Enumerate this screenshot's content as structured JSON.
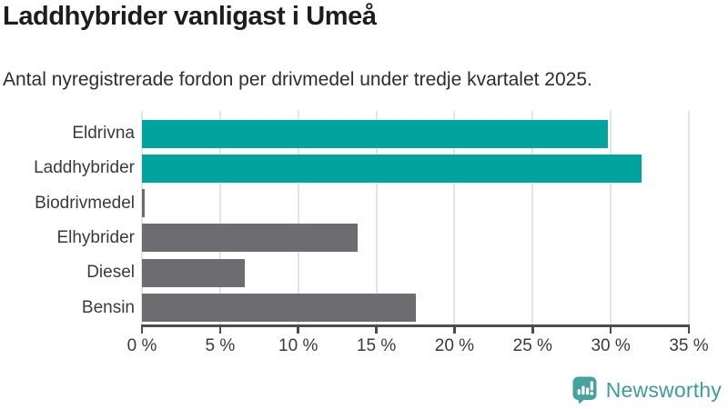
{
  "title": "Laddhybrider vanligast i Umeå",
  "subtitle": "Antal nyregistrerade fordon per drivmedel under tredje kvartalet 2025.",
  "chart_data": {
    "type": "bar",
    "orientation": "horizontal",
    "title": "Laddhybrider vanligast i Umeå",
    "subtitle": "Antal nyregistrerade fordon per drivmedel under tredje kvartalet 2025.",
    "categories": [
      "Eldrivna",
      "Laddhybrider",
      "Biodrivmedel",
      "Elhybrider",
      "Diesel",
      "Bensin"
    ],
    "values": [
      29.8,
      32.0,
      0.2,
      13.8,
      6.6,
      17.5
    ],
    "unit": "%",
    "bar_colors": [
      "#01a49c",
      "#01a49c",
      "#6c6c71",
      "#6c6c71",
      "#6c6c71",
      "#6c6c71"
    ],
    "highlight_color": "#01a49c",
    "base_color": "#6c6c71",
    "xlim": [
      0,
      35
    ],
    "x_tick_values": [
      0,
      5,
      10,
      15,
      20,
      25,
      30,
      35
    ],
    "x_tick_labels": [
      "0 %",
      "5 %",
      "10 %",
      "15 %",
      "20 %",
      "25 %",
      "30 %",
      "35 %"
    ],
    "grid": true,
    "legend": "none"
  },
  "branding": {
    "logo_text": "Newsworthy",
    "logo_color": "#3e9d95",
    "icon": "newsworthy-speech-bubble-bar-chart-icon"
  },
  "colors": {
    "title_text": "#1d1d1d",
    "subtitle_text": "#2d2d2d",
    "axis_text": "#3a3a3a",
    "axis_line": "#4c4c4c",
    "gridline": "#e4e4e4",
    "background": "#ffffff"
  }
}
